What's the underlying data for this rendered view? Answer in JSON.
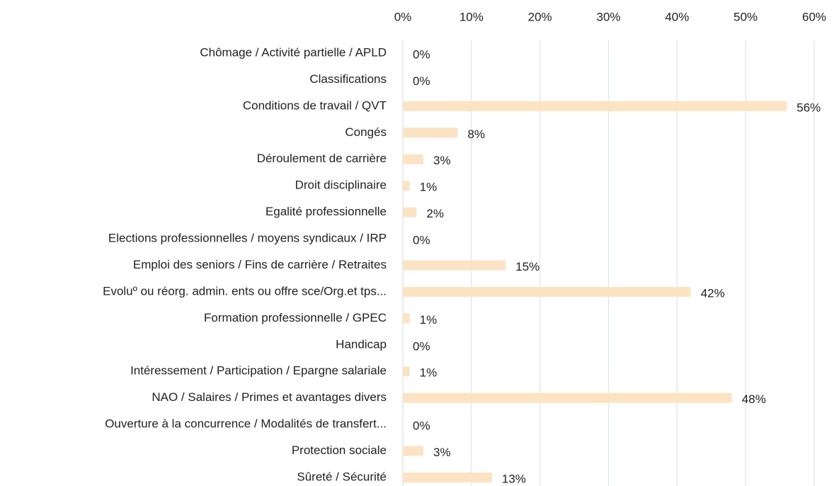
{
  "chart_data": {
    "type": "bar",
    "orientation": "horizontal",
    "categories": [
      "Chômage / Activité partielle / APLD",
      "Classifications",
      "Conditions de travail / QVT",
      "Congés",
      "Déroulement de carrière",
      "Droit disciplinaire",
      "Egalité professionnelle",
      "Elections professionnelles / moyens syndicaux / IRP",
      "Emploi des seniors / Fins de carrière / Retraites",
      "Evoluº ou réorg. admin. ents ou offre sce/Org.et tps...",
      "Formation professionnelle / GPEC",
      "Handicap",
      "Intéressement / Participation / Epargne salariale",
      "NAO / Salaires / Primes et avantages divers",
      "Ouverture à la concurrence / Modalités de transfert...",
      "Protection sociale",
      "Sûreté / Sécurité"
    ],
    "values": [
      0,
      0,
      56,
      8,
      3,
      1,
      2,
      0,
      15,
      42,
      1,
      0,
      1,
      48,
      0,
      3,
      13
    ],
    "value_labels": [
      "0%",
      "0%",
      "56%",
      "8%",
      "3%",
      "1%",
      "2%",
      "0%",
      "15%",
      "42%",
      "1%",
      "0%",
      "1%",
      "48%",
      "0%",
      "3%",
      "13%"
    ],
    "color": "#fbe3c4",
    "xlim": [
      0,
      60
    ],
    "xticks": [
      {
        "value": 0,
        "label": "0%"
      },
      {
        "value": 10,
        "label": "10%"
      },
      {
        "value": 20,
        "label": "20%"
      },
      {
        "value": 30,
        "label": "30%"
      },
      {
        "value": 40,
        "label": "40%"
      },
      {
        "value": 50,
        "label": "50%"
      },
      {
        "value": 60,
        "label": "60%"
      }
    ],
    "grid": true
  }
}
